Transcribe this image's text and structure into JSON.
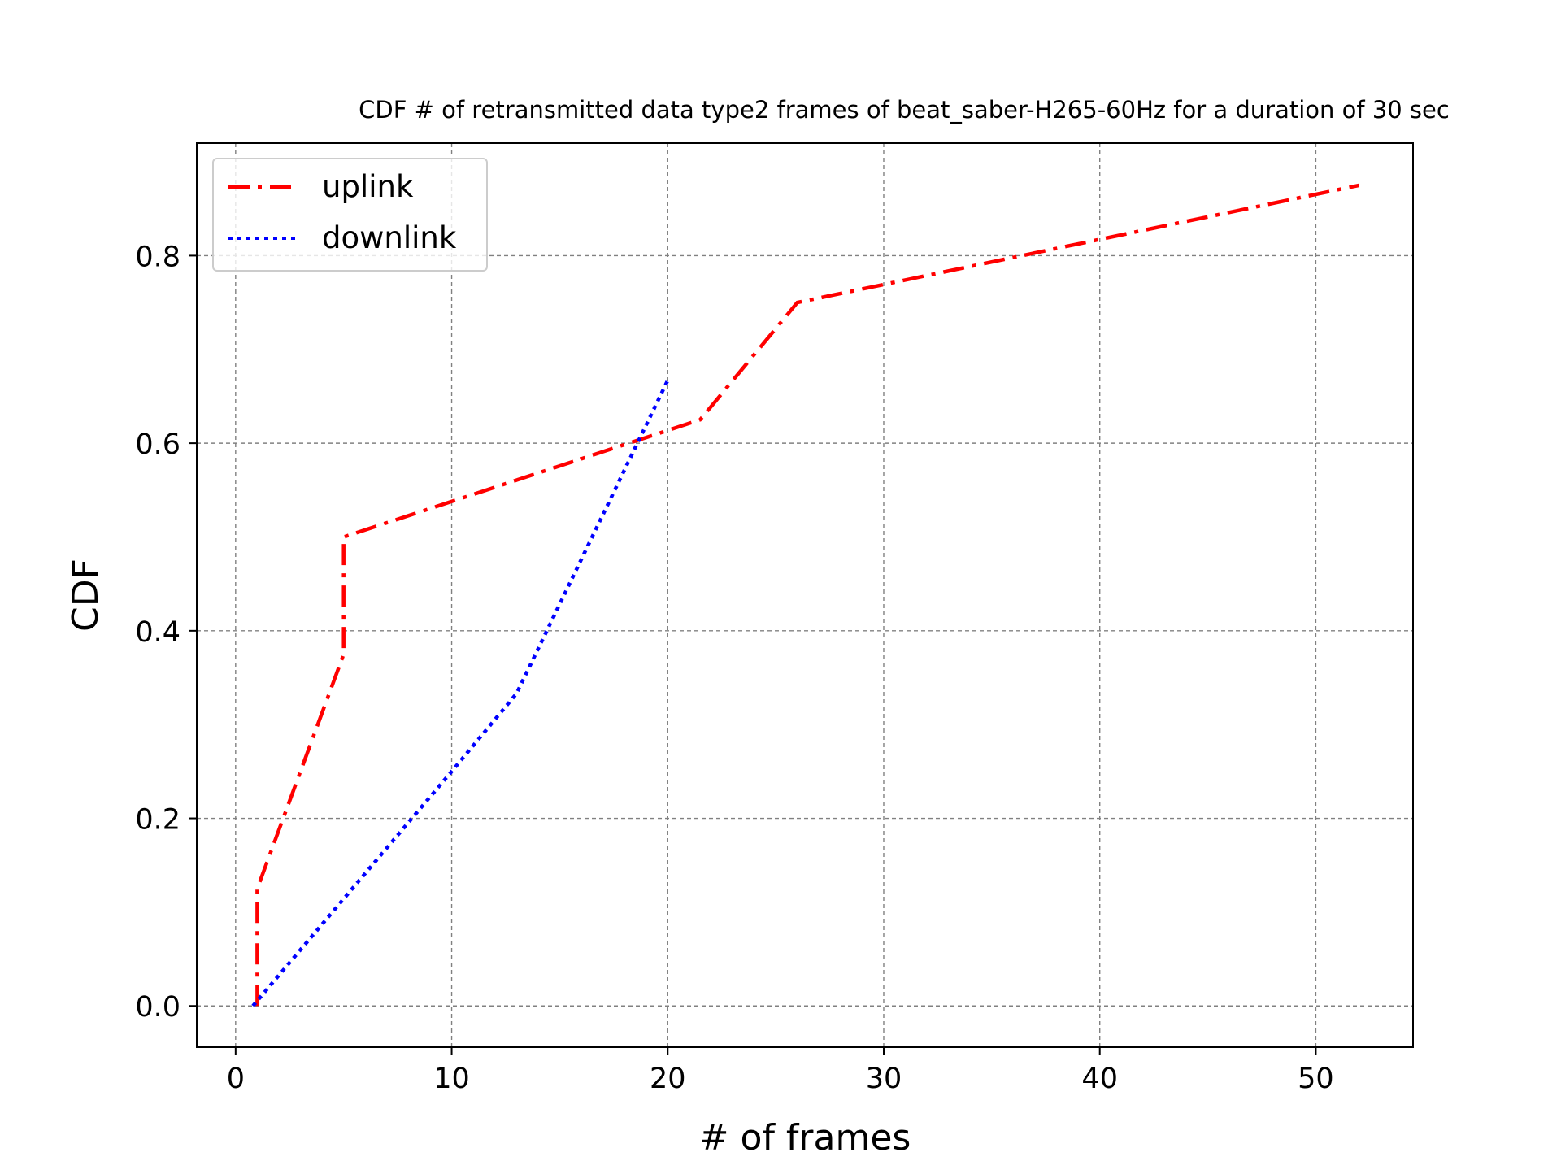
{
  "chart_data": {
    "type": "line",
    "title": "CDF # of retransmitted data type2 frames of beat_saber-H265-60Hz for a duration of 30 sec",
    "xlabel": "# of frames",
    "ylabel": "CDF",
    "xlim": [
      -1.8,
      54.5
    ],
    "ylim": [
      -0.044,
      0.92
    ],
    "xticks": [
      0,
      10,
      20,
      30,
      40,
      50
    ],
    "xtick_labels": [
      "0",
      "10",
      "20",
      "30",
      "40",
      "50"
    ],
    "yticks": [
      0.0,
      0.2,
      0.4,
      0.6,
      0.8
    ],
    "ytick_labels": [
      "0.0",
      "0.2",
      "0.4",
      "0.6",
      "0.8"
    ],
    "grid": true,
    "legend_position": "upper-left",
    "series": [
      {
        "name": "uplink",
        "color": "#ff0000",
        "line_style": "dash-dot",
        "x": [
          1,
          1,
          5,
          5,
          5,
          21.5,
          26,
          52
        ],
        "y": [
          0.0,
          0.125,
          0.375,
          0.43,
          0.5,
          0.625,
          0.75,
          0.875
        ]
      },
      {
        "name": "downlink",
        "color": "#0000ff",
        "line_style": "dotted",
        "x": [
          0.8,
          10,
          13,
          20
        ],
        "y": [
          0.0,
          0.25,
          0.333,
          0.667
        ]
      }
    ]
  }
}
